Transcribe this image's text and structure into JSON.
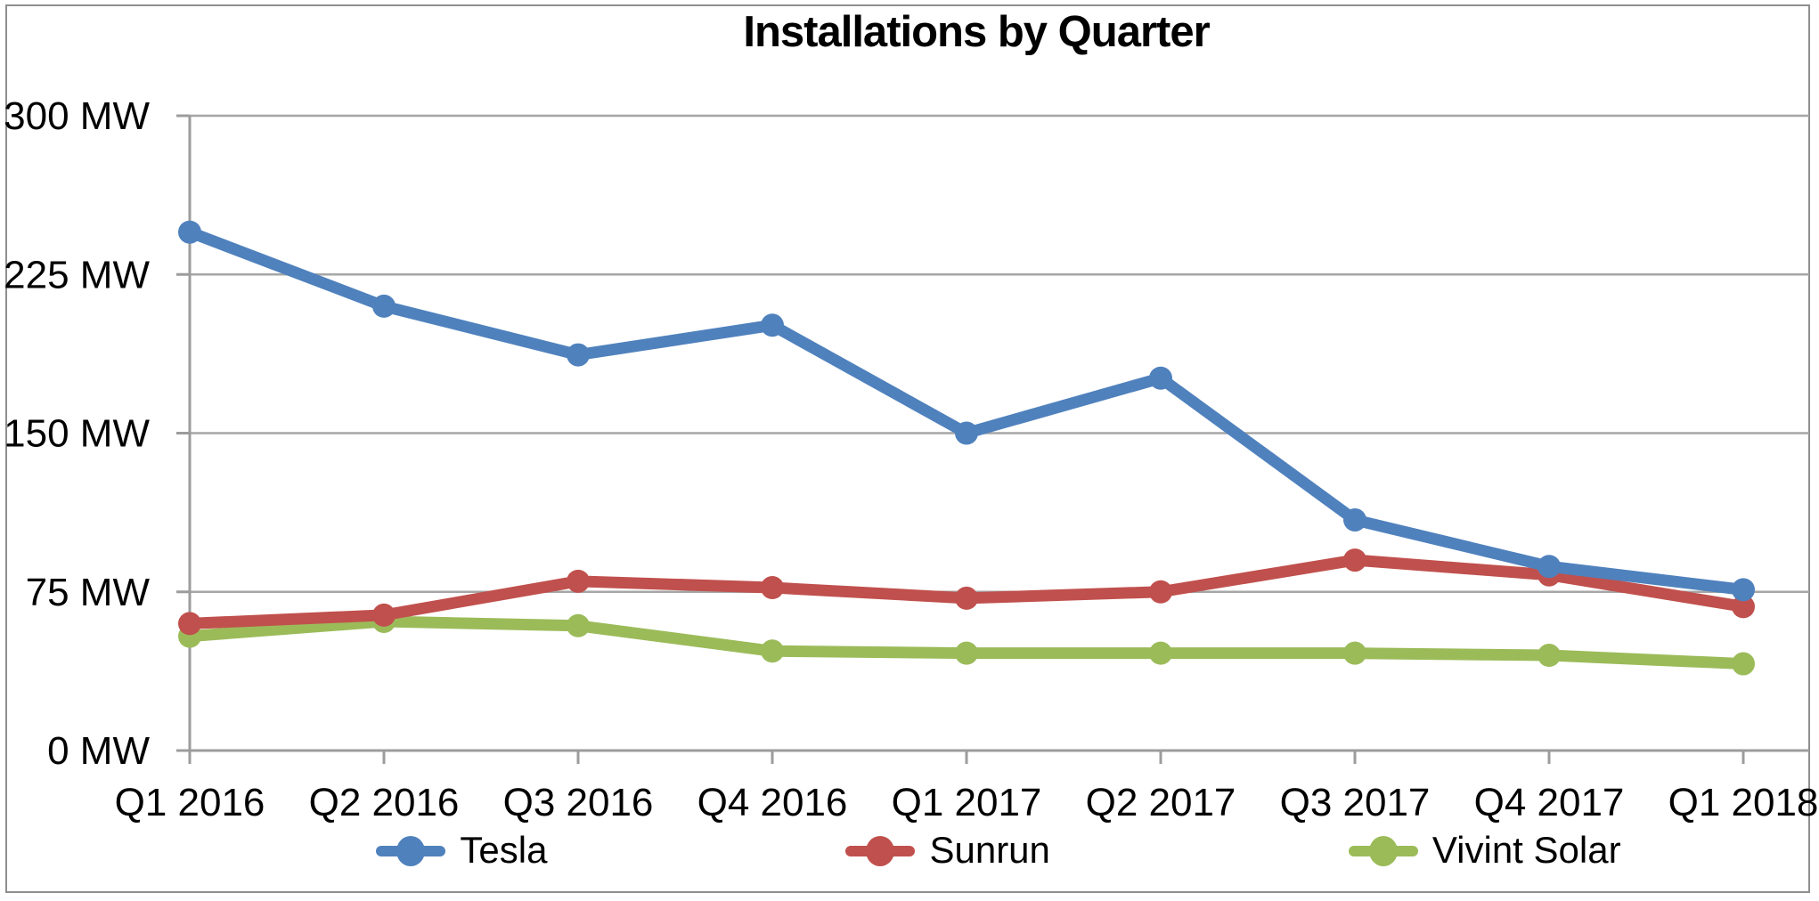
{
  "chart_data": {
    "type": "line",
    "title": "Installations by Quarter",
    "categories": [
      "Q1 2016",
      "Q2 2016",
      "Q3 2016",
      "Q4 2016",
      "Q1 2017",
      "Q2 2017",
      "Q3 2017",
      "Q4 2017",
      "Q1 2018"
    ],
    "series": [
      {
        "name": "Tesla",
        "color": "#4F81BD",
        "values": [
          245,
          210,
          187,
          201,
          150,
          176,
          109,
          87,
          76
        ]
      },
      {
        "name": "Sunrun",
        "color": "#C0504D",
        "values": [
          60,
          64,
          80,
          77,
          72,
          75,
          90,
          83,
          68
        ]
      },
      {
        "name": "Vivint Solar",
        "color": "#9BBB59",
        "values": [
          54,
          61,
          59,
          47,
          46,
          46,
          46,
          45,
          41
        ]
      }
    ],
    "y_axis": {
      "unit": "MW",
      "min": 0,
      "max": 300,
      "tick_interval": 75,
      "tick_labels": [
        "0 MW",
        "75 MW",
        "150 MW",
        "225 MW",
        "300 MW"
      ]
    },
    "grid": true,
    "legend_position": "bottom",
    "colors": {
      "gridline": "#A6A6A6",
      "axis": "#9c9c9c",
      "border": "#8f8f8f",
      "text": "#000000"
    }
  }
}
